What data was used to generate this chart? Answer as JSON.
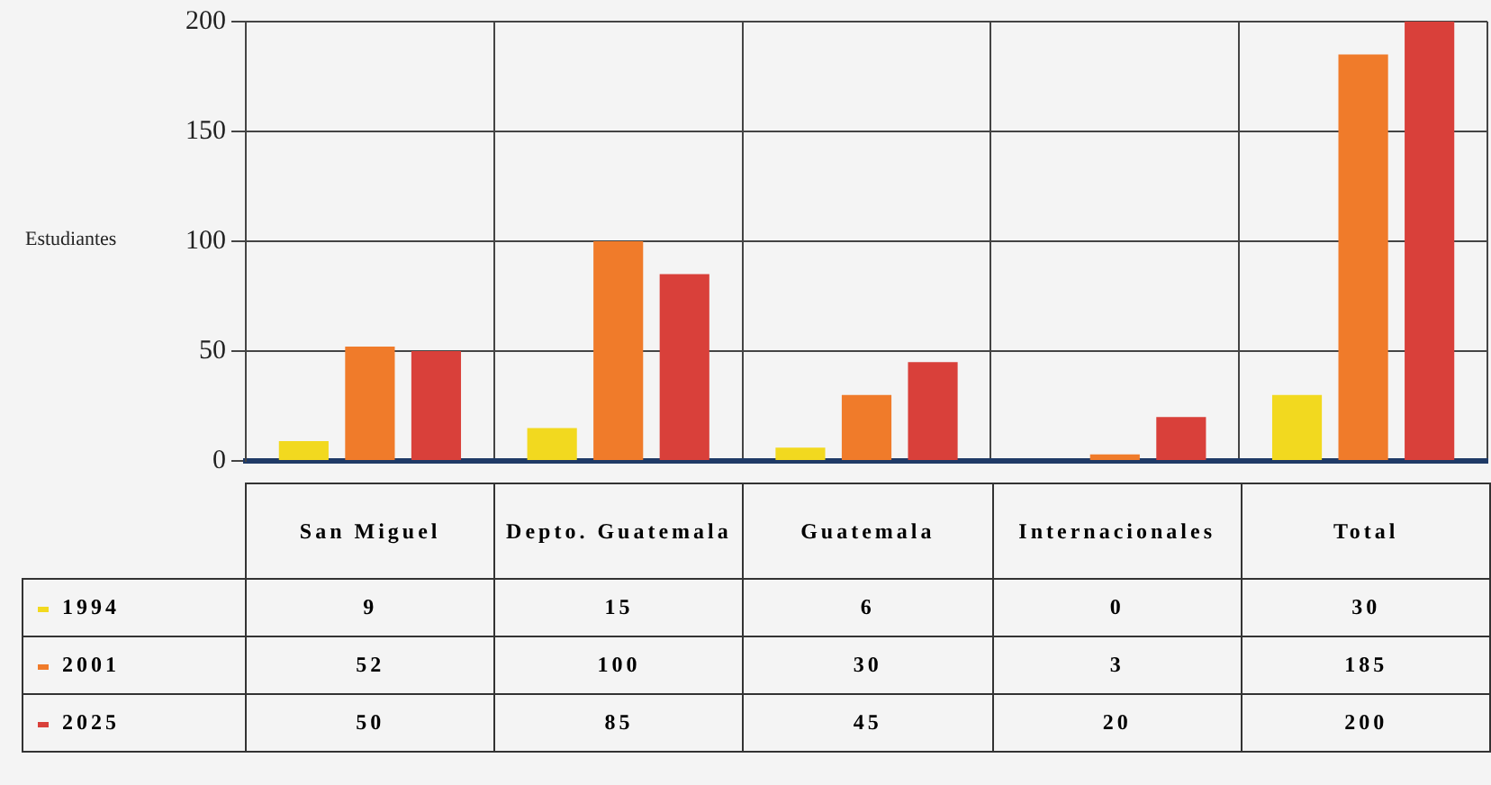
{
  "chart_data": {
    "type": "bar",
    "ylabel": "Estudiantes",
    "categories": [
      "San Miguel",
      "Depto. Guatemala",
      "Guatemala",
      "Internacionales",
      "Total"
    ],
    "series": [
      {
        "name": "1994",
        "color": "#f2d91f",
        "values": [
          9,
          15,
          6,
          0,
          30
        ]
      },
      {
        "name": "2001",
        "color": "#f07b2a",
        "values": [
          52,
          100,
          30,
          3,
          185
        ]
      },
      {
        "name": "2025",
        "color": "#d9403a",
        "values": [
          50,
          85,
          45,
          20,
          200
        ]
      }
    ],
    "ylim": [
      0,
      200
    ],
    "yticks": [
      0,
      50,
      100,
      150,
      200
    ],
    "grid": true,
    "legend": "bottom",
    "data_labels": true
  }
}
